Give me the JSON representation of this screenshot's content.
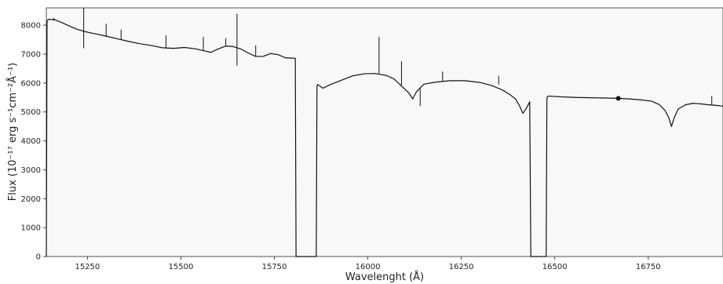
{
  "chart_data": {
    "type": "line",
    "title": "",
    "xlabel": "Wavelenght (Å)",
    "ylabel": "Flux (10⁻¹⁷ erg s⁻¹cm⁻²Å⁻¹)",
    "xlim": [
      15140,
      16950
    ],
    "ylim": [
      0,
      8600
    ],
    "xticks": [
      15250,
      15500,
      15750,
      16000,
      16250,
      16500,
      16750
    ],
    "yticks": [
      0,
      1000,
      2000,
      3000,
      4000,
      5000,
      6000,
      7000,
      8000
    ],
    "grid": false,
    "legend": "none",
    "background_color": "#f8f8f8",
    "line_color": "#111111",
    "series": [
      {
        "name": "",
        "x": [
          15140,
          15142,
          15145,
          15160,
          15180,
          15200,
          15220,
          15240,
          15260,
          15280,
          15300,
          15330,
          15360,
          15390,
          15420,
          15450,
          15480,
          15510,
          15540,
          15560,
          15580,
          15600,
          15620,
          15640,
          15660,
          15680,
          15700,
          15720,
          15740,
          15760,
          15780,
          15800,
          15806,
          15808,
          15862,
          15864,
          15866,
          15880,
          15900,
          15930,
          15960,
          15990,
          16020,
          16050,
          16070,
          16090,
          16110,
          16120,
          16130,
          16150,
          16180,
          16220,
          16260,
          16300,
          16330,
          16360,
          16380,
          16395,
          16405,
          16415,
          16425,
          16433,
          16436,
          16477,
          16479,
          16482,
          16520,
          16560,
          16600,
          16640,
          16670,
          16700,
          16730,
          16760,
          16780,
          16795,
          16805,
          16812,
          16820,
          16830,
          16850,
          16870,
          16890,
          16910,
          16930,
          16950
        ],
        "y": [
          0,
          8150,
          8200,
          8200,
          8100,
          7980,
          7870,
          7790,
          7730,
          7680,
          7620,
          7530,
          7440,
          7360,
          7300,
          7220,
          7200,
          7230,
          7180,
          7120,
          7060,
          7180,
          7280,
          7260,
          7180,
          7040,
          6920,
          6920,
          7020,
          6980,
          6870,
          6860,
          6850,
          0,
          0,
          5900,
          5950,
          5820,
          5950,
          6100,
          6250,
          6320,
          6330,
          6260,
          6140,
          5900,
          5650,
          5450,
          5700,
          5960,
          6030,
          6080,
          6080,
          6020,
          5920,
          5760,
          5600,
          5450,
          5230,
          4950,
          5150,
          5350,
          0,
          0,
          5480,
          5550,
          5520,
          5500,
          5490,
          5480,
          5470,
          5450,
          5420,
          5370,
          5250,
          5050,
          4800,
          4500,
          4820,
          5100,
          5250,
          5300,
          5280,
          5250,
          5230,
          5200
        ]
      }
    ],
    "spikes": [
      {
        "x": 15160,
        "y0": 8150,
        "y1": 8250
      },
      {
        "x": 15240,
        "y0": 7790,
        "y1": 8600
      },
      {
        "x": 15240,
        "y0": 7790,
        "y1": 7200
      },
      {
        "x": 15300,
        "y0": 7620,
        "y1": 8050
      },
      {
        "x": 15340,
        "y0": 7500,
        "y1": 7850
      },
      {
        "x": 15460,
        "y0": 7220,
        "y1": 7650
      },
      {
        "x": 15560,
        "y0": 7120,
        "y1": 7600
      },
      {
        "x": 15620,
        "y0": 7280,
        "y1": 7550
      },
      {
        "x": 15650,
        "y0": 7250,
        "y1": 8400
      },
      {
        "x": 15650,
        "y0": 7250,
        "y1": 6600
      },
      {
        "x": 15700,
        "y0": 6920,
        "y1": 7300
      },
      {
        "x": 16030,
        "y0": 6330,
        "y1": 7600
      },
      {
        "x": 16090,
        "y0": 5900,
        "y1": 6750
      },
      {
        "x": 16140,
        "y0": 5800,
        "y1": 5200
      },
      {
        "x": 16200,
        "y0": 6050,
        "y1": 6400
      },
      {
        "x": 16350,
        "y0": 5950,
        "y1": 6250
      },
      {
        "x": 16920,
        "y0": 5230,
        "y1": 5550
      }
    ]
  }
}
